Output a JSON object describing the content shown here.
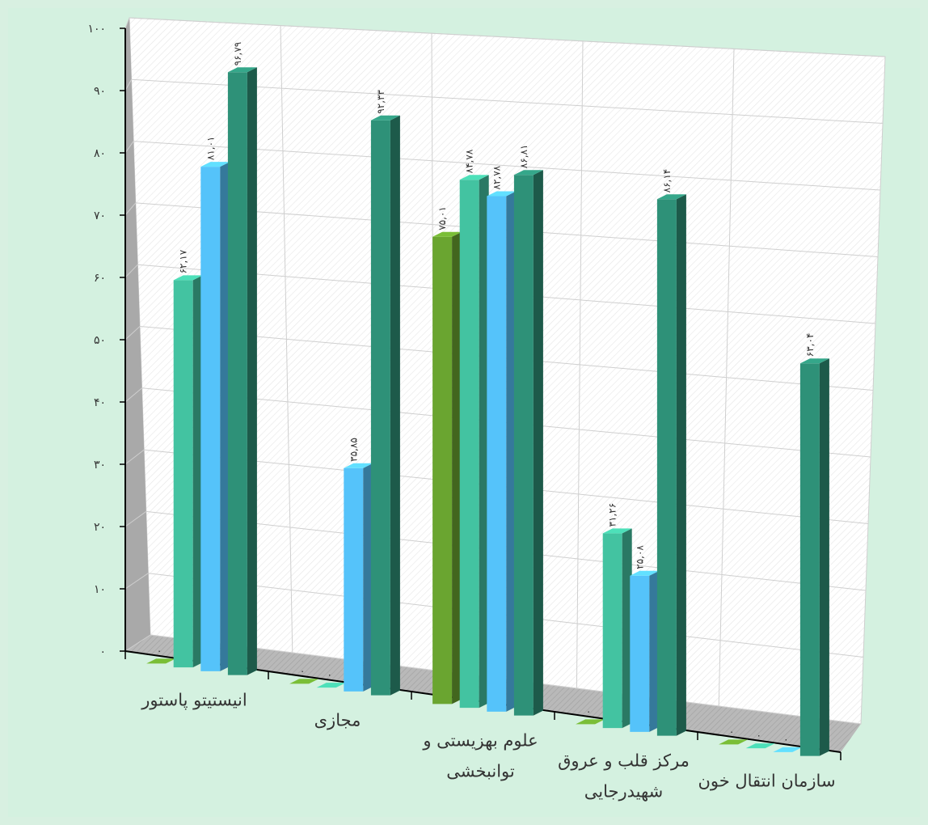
{
  "chart_data": {
    "type": "bar",
    "view": "3d-clustered-column",
    "categories": [
      [
        "انیستیتو پاستور"
      ],
      [
        "مجازی"
      ],
      [
        "علوم بهزیستی و",
        "توانبخشی"
      ],
      [
        "مرکز قلب و عروق",
        "شهیدرجایی"
      ],
      [
        "سازمان انتقال خون"
      ]
    ],
    "series": [
      {
        "color": "#6aa530",
        "values": [
          0,
          0,
          75.01,
          0,
          0
        ]
      },
      {
        "color": "#43c3a1",
        "values": [
          62.17,
          0,
          84.78,
          31.26,
          0
        ]
      },
      {
        "color": "#55c3fa",
        "values": [
          81.01,
          35.85,
          82.78,
          25.08,
          0
        ]
      },
      {
        "color": "#2e9178",
        "values": [
          96.79,
          92.33,
          86.81,
          86.14,
          63.04
        ]
      }
    ],
    "data_labels": [
      [
        "۰",
        "۶۲,۱۷",
        "۸۱,۰۱",
        "۹۶,۷۹"
      ],
      [
        "۰",
        "۰",
        "۳۵,۸۵",
        "۹۲,۳۳"
      ],
      [
        "۷۵,۰۱",
        "۸۴,۷۸",
        "۸۲,۷۸",
        "۸۶,۸۱"
      ],
      [
        "۰",
        "۳۱,۲۶",
        "۲۵,۰۸",
        "۸۶,۱۴"
      ],
      [
        "۰",
        "۰",
        "۰",
        "۶۳,۰۴"
      ]
    ],
    "y_ticks": [
      "۰",
      "۱۰",
      "۲۰",
      "۳۰",
      "۴۰",
      "۵۰",
      "۶۰",
      "۷۰",
      "۸۰",
      "۹۰",
      "۱۰۰"
    ],
    "ylim": [
      0,
      100
    ],
    "grid": true
  }
}
